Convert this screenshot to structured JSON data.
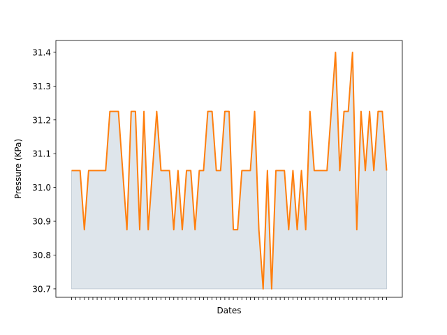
{
  "chart_data": {
    "type": "area",
    "title": "",
    "xlabel": "Dates",
    "ylabel": "Pressure (KPa)",
    "x_tick_labels_visible": false,
    "ylim": [
      30.675,
      31.435
    ],
    "yticks": [
      "30.7",
      "30.8",
      "30.9",
      "31.0",
      "31.1",
      "31.2",
      "31.3",
      "31.4"
    ],
    "grid": false,
    "legend": "none",
    "fill_baseline": 30.7,
    "colors": {
      "line": "#ff7f0e",
      "fill": "#1f4e79",
      "fill_opacity": 0.15
    },
    "series": [
      {
        "values": [
          31.05,
          31.05,
          31.05,
          30.875,
          31.05,
          31.05,
          31.05,
          31.05,
          31.05,
          31.225,
          31.225,
          31.225,
          31.05,
          30.875,
          31.225,
          31.225,
          30.875,
          31.225,
          30.875,
          31.05,
          31.225,
          31.05,
          31.05,
          31.05,
          30.875,
          31.05,
          30.875,
          31.05,
          31.05,
          30.875,
          31.05,
          31.05,
          31.225,
          31.225,
          31.05,
          31.05,
          31.225,
          31.225,
          30.875,
          30.875,
          31.05,
          31.05,
          31.05,
          31.225,
          30.875,
          30.7,
          31.05,
          30.7,
          31.05,
          31.05,
          31.05,
          30.875,
          31.05,
          30.875,
          31.05,
          30.875,
          31.225,
          31.05,
          31.05,
          31.05,
          31.05,
          31.225,
          31.4,
          31.05,
          31.225,
          31.225,
          31.4,
          30.875,
          31.225,
          31.05,
          31.225,
          31.05,
          31.225,
          31.225,
          31.05
        ]
      }
    ]
  }
}
